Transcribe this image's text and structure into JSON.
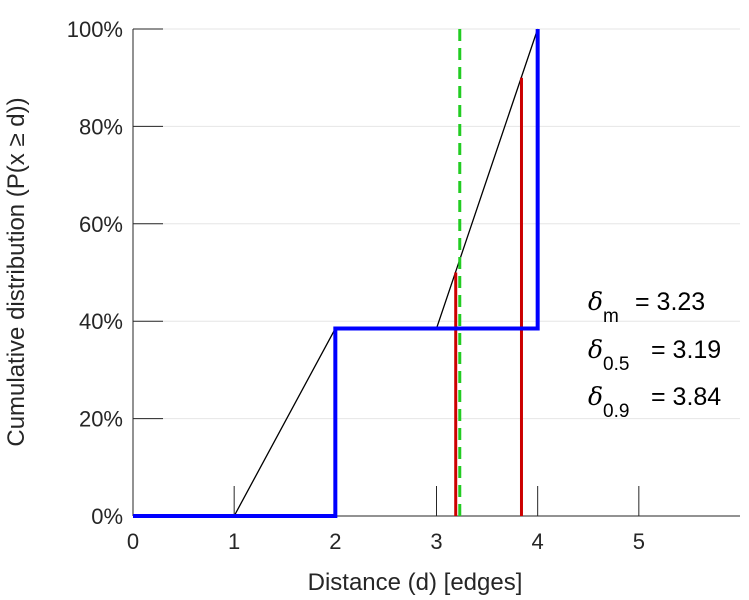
{
  "chart_data": {
    "type": "line",
    "xlabel": "Distance (d) [edges]",
    "ylabel": "Cumulative distribution (P(x ≥ d))",
    "xlim": [
      0,
      6
    ],
    "ylim": [
      0,
      100
    ],
    "x_ticks": [
      "0",
      "1",
      "2",
      "3",
      "4",
      "5"
    ],
    "y_ticks": [
      "0%",
      "20%",
      "40%",
      "60%",
      "80%",
      "100%"
    ],
    "grid": "horizontal",
    "series": [
      {
        "role": "step",
        "color": "#0000ff",
        "points": [
          [
            0,
            0
          ],
          [
            2,
            0
          ],
          [
            2,
            38.5
          ],
          [
            4,
            38.5
          ],
          [
            4,
            100
          ]
        ]
      },
      {
        "role": "interpolation",
        "color": "#000000",
        "points": [
          [
            1,
            0
          ],
          [
            2,
            38.5
          ],
          [
            3,
            38.5
          ],
          [
            4,
            100
          ]
        ]
      }
    ],
    "vlines": [
      {
        "x": 3.23,
        "ymax": 100,
        "color": "#22cc22",
        "style": "dashed"
      },
      {
        "x": 3.19,
        "ymax": 50,
        "color": "#cc0000",
        "style": "solid"
      },
      {
        "x": 3.84,
        "ymax": 90,
        "color": "#cc0000",
        "style": "solid"
      }
    ],
    "annotations": [
      {
        "symbol": "δ",
        "sub": "m",
        "value": "= 3.23"
      },
      {
        "symbol": "δ",
        "sub": "0.5",
        "value": "= 3.19"
      },
      {
        "symbol": "δ",
        "sub": "0.9",
        "value": "= 3.84"
      }
    ]
  }
}
